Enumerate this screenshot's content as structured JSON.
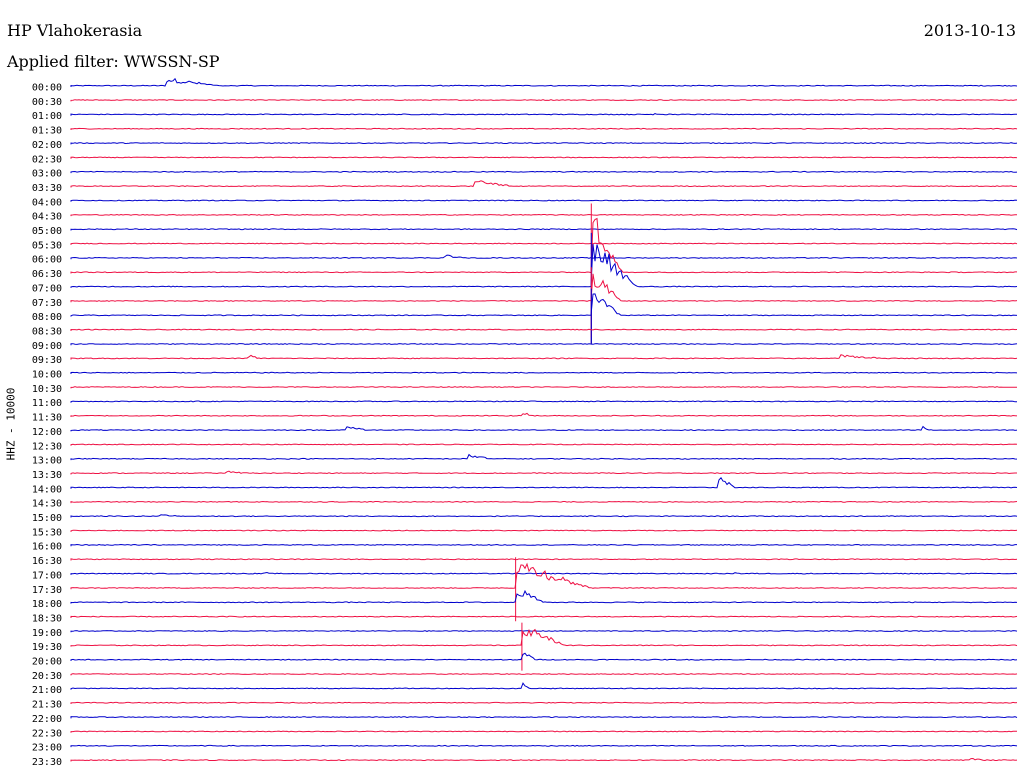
{
  "header": {
    "station": "HP Vlahokerasia",
    "date": "2013-10-13",
    "filter": "Applied filter: WWSSN-SP",
    "channel": "HHZ - 10000"
  },
  "chart_data": {
    "type": "line",
    "title": "HP Vlahokerasia",
    "rows": [
      "00:00",
      "00:30",
      "01:00",
      "01:30",
      "02:00",
      "02:30",
      "03:00",
      "03:30",
      "04:00",
      "04:30",
      "05:00",
      "05:30",
      "06:00",
      "06:30",
      "07:00",
      "07:30",
      "08:00",
      "08:30",
      "09:00",
      "09:30",
      "10:00",
      "10:30",
      "11:00",
      "11:30",
      "12:00",
      "12:30",
      "13:00",
      "13:30",
      "14:00",
      "14:30",
      "15:00",
      "15:30",
      "16:00",
      "16:30",
      "17:00",
      "17:30",
      "18:00",
      "18:30",
      "19:00",
      "19:30",
      "20:00",
      "20:30",
      "21:00",
      "21:30",
      "22:00",
      "22:30",
      "23:00",
      "23:30"
    ],
    "row_minutes": 30,
    "colors": [
      "#0000cc",
      "#ee1144"
    ],
    "events": [
      {
        "row": "00:00",
        "minute": 3.0,
        "amplitude": 10,
        "duration": 2.0
      },
      {
        "row": "01:00",
        "minute": 18.5,
        "amplitude": 3,
        "duration": 0.5
      },
      {
        "row": "03:30",
        "minute": 12.8,
        "amplitude": 8,
        "duration": 1.5
      },
      {
        "row": "06:00",
        "minute": 11.8,
        "amplitude": 5,
        "duration": 1.0
      },
      {
        "row": "06:30",
        "minute": 16.5,
        "amplitude": 70,
        "duration": 1.0
      },
      {
        "row": "07:00",
        "minute": 16.5,
        "amplitude": 55,
        "duration": 1.5
      },
      {
        "row": "07:30",
        "minute": 16.5,
        "amplitude": 35,
        "duration": 1.0
      },
      {
        "row": "08:00",
        "minute": 16.5,
        "amplitude": 28,
        "duration": 1.0
      },
      {
        "row": "09:30",
        "minute": 5.6,
        "amplitude": 6,
        "duration": 0.5
      },
      {
        "row": "09:30",
        "minute": 24.4,
        "amplitude": 5,
        "duration": 2.0
      },
      {
        "row": "11:30",
        "minute": 14.3,
        "amplitude": 5,
        "duration": 0.6
      },
      {
        "row": "12:00",
        "minute": 8.7,
        "amplitude": 6,
        "duration": 1.0
      },
      {
        "row": "12:00",
        "minute": 27.0,
        "amplitude": 6,
        "duration": 0.3
      },
      {
        "row": "13:00",
        "minute": 12.6,
        "amplitude": 6,
        "duration": 1.0
      },
      {
        "row": "13:30",
        "minute": 4.9,
        "amplitude": 4,
        "duration": 1.0
      },
      {
        "row": "14:00",
        "minute": 20.5,
        "amplitude": 16,
        "duration": 0.6
      },
      {
        "row": "15:00",
        "minute": 2.8,
        "amplitude": 4,
        "duration": 1.0
      },
      {
        "row": "17:00",
        "minute": 6.1,
        "amplitude": 4,
        "duration": 0.3
      },
      {
        "row": "17:00",
        "minute": 21.0,
        "amplitude": 5,
        "duration": 0.3
      },
      {
        "row": "17:30",
        "minute": 14.1,
        "amplitude": 32,
        "duration": 2.5
      },
      {
        "row": "18:00",
        "minute": 14.1,
        "amplitude": 18,
        "duration": 1.0
      },
      {
        "row": "19:30",
        "minute": 14.3,
        "amplitude": 24,
        "duration": 1.5
      },
      {
        "row": "20:00",
        "minute": 14.3,
        "amplitude": 12,
        "duration": 0.5
      },
      {
        "row": "21:00",
        "minute": 14.3,
        "amplitude": 8,
        "duration": 0.3
      },
      {
        "row": "23:30",
        "minute": 28.5,
        "amplitude": 4,
        "duration": 0.8
      }
    ]
  }
}
